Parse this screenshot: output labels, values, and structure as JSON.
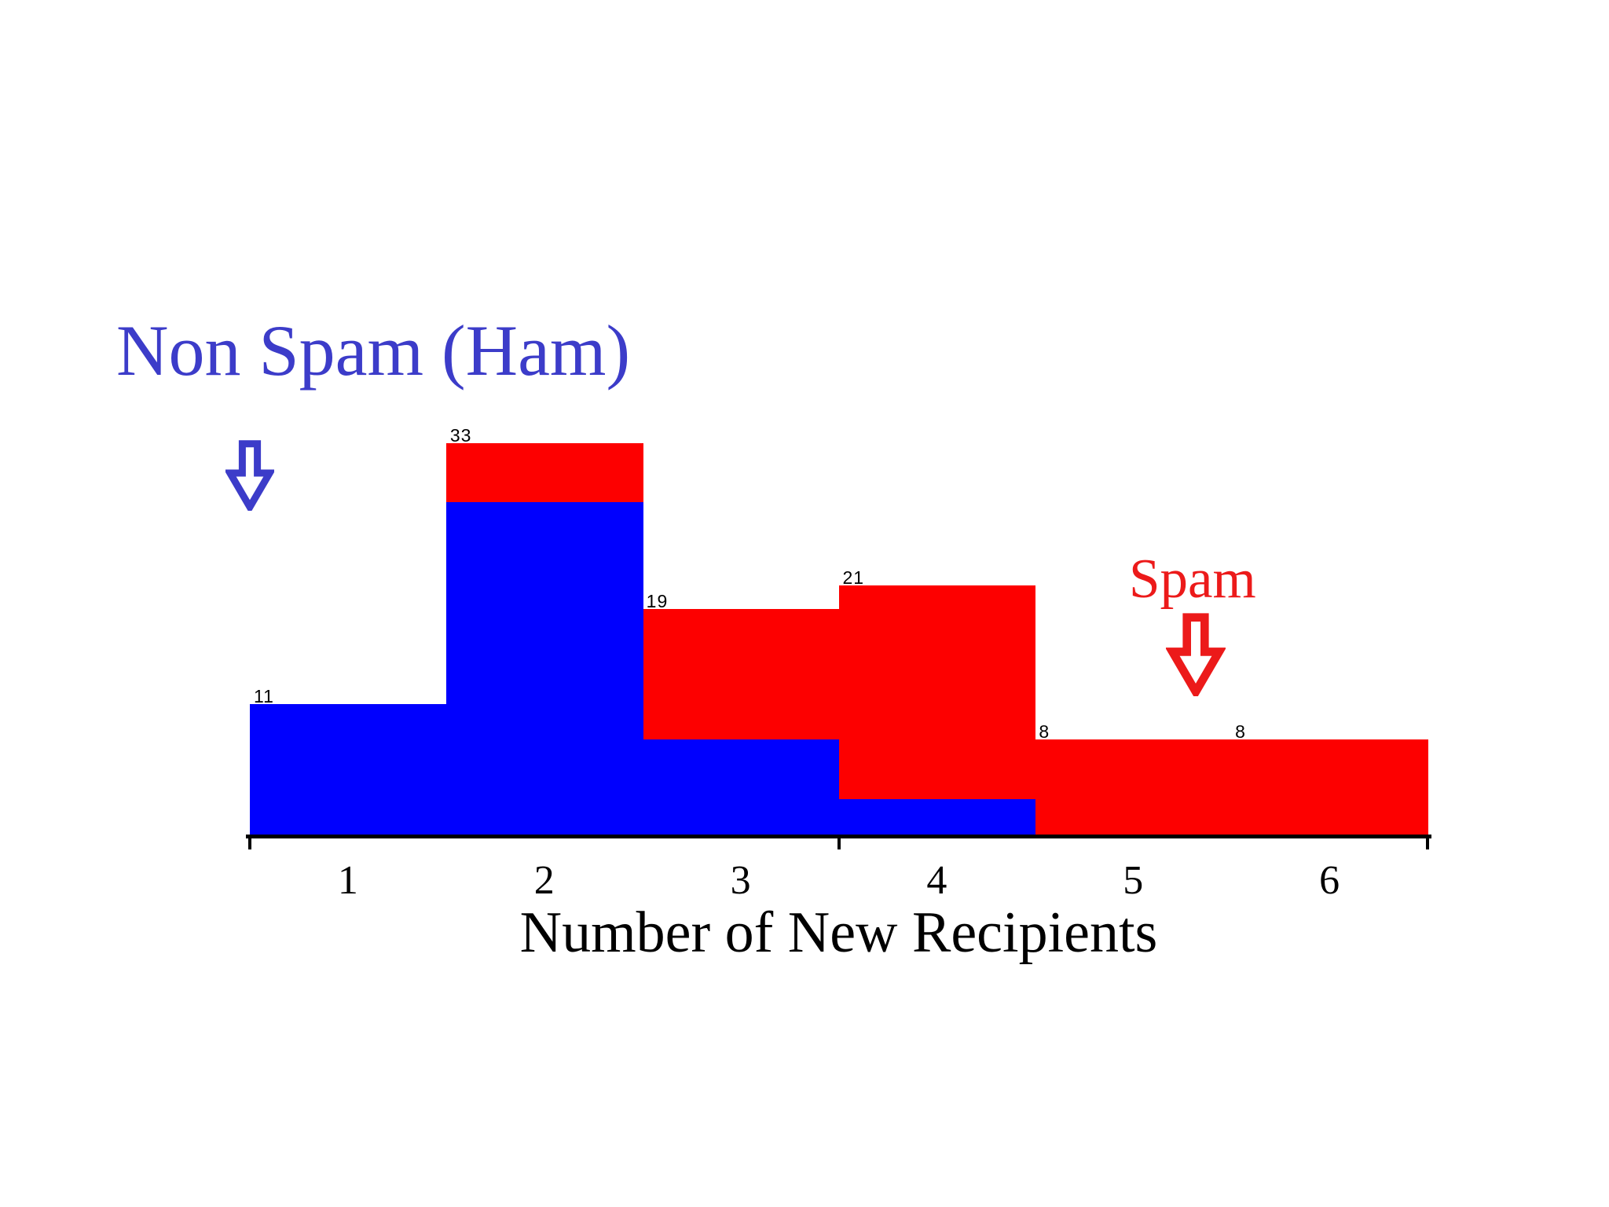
{
  "figure": {
    "background": "#ffffff"
  },
  "chart_data": {
    "type": "bar",
    "subtype": "overlaid-histogram",
    "title": "",
    "xlabel": "Number of New Recipients",
    "ylabel": "",
    "categories": [
      "1",
      "2",
      "3",
      "4",
      "5",
      "6"
    ],
    "x_tick_labels": [
      "1",
      "2",
      "3",
      "4",
      "5",
      "6"
    ],
    "series": [
      {
        "name": "Non Spam (Ham)",
        "color": "#0000fe",
        "values": [
          11,
          28,
          8,
          3,
          0,
          0
        ]
      },
      {
        "name": "Spam",
        "color": "#fd0000",
        "values": [
          0,
          33,
          19,
          21,
          8,
          8
        ]
      }
    ],
    "bar_value_labels": [
      "11",
      "33",
      "19",
      "21",
      "8",
      "8"
    ],
    "ylim": [
      0,
      35
    ],
    "grid": false,
    "y_axis_visible": false,
    "legend_position": "annotations"
  },
  "annotations": {
    "ham": {
      "text": "Non Spam (Ham)",
      "color": "#3c3cc9",
      "arrow": "down-white-arrow"
    },
    "spam": {
      "text": "Spam",
      "color": "#ec1a1a",
      "arrow": "down-white-arrow"
    }
  }
}
